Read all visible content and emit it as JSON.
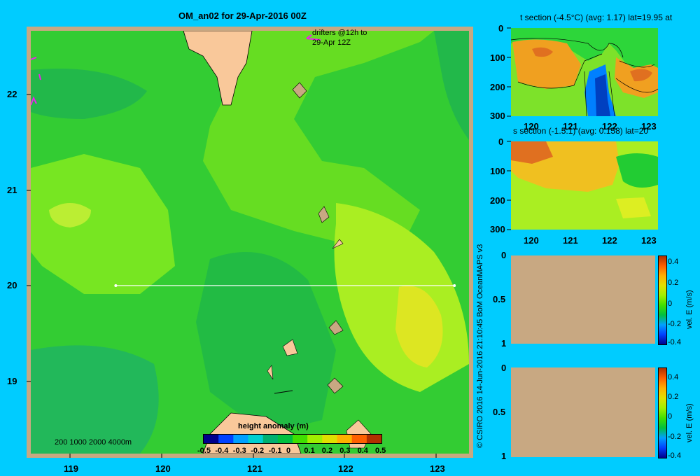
{
  "main_map": {
    "title": "OM_an02 for 29-Apr-2016 00Z",
    "drifters_label_line1": "drifters @12h to",
    "drifters_label_line2": "29-Apr 12Z",
    "xticks": [
      "119",
      "120",
      "121",
      "122",
      "123"
    ],
    "yticks": [
      "22",
      "21",
      "20",
      "19"
    ],
    "depth_legend": "200  1000  2000  4000m",
    "section_line_lat": 20,
    "section_line_lon_range": [
      119.5,
      123.2
    ],
    "colorbar": {
      "title": "height anomaly  (m)",
      "ticks": [
        "-0.5",
        "-0.4",
        "-0.3",
        "-0.2",
        "-0.1",
        "0",
        "0.1",
        "0.2",
        "0.3",
        "0.4",
        "0.5"
      ],
      "colors": [
        "#00008b",
        "#0040ff",
        "#00a0ff",
        "#00d0d0",
        "#00b070",
        "#00c040",
        "#40e000",
        "#a0f000",
        "#e0e000",
        "#ffb000",
        "#ff6000",
        "#b03000"
      ]
    }
  },
  "copyright": "© CSIRO 2016    14-Jun-2016 21:10:45 BoM OceanMAPS v3",
  "t_section": {
    "title": "t section (-4.5°C) (avg: 1.17) lat=19.95 at",
    "yticks": [
      "0",
      "100",
      "200",
      "300"
    ],
    "xticks": [
      "120",
      "121",
      "122",
      "123"
    ]
  },
  "s_section": {
    "title": "s section (-1.5:1) (avg: 0.158) lat=20",
    "yticks": [
      "0",
      "100",
      "200",
      "300"
    ],
    "xticks": [
      "120",
      "121",
      "122",
      "123"
    ]
  },
  "vel_panel_1": {
    "yticks": [
      "0",
      "0.5",
      "1"
    ],
    "colorbar_ticks": [
      "0.4",
      "0.2",
      "0",
      "-0.2",
      "-0.4"
    ],
    "colorbar_label": "vel. E (m/s)"
  },
  "vel_panel_2": {
    "yticks": [
      "0",
      "0.5",
      "1"
    ],
    "colorbar_ticks": [
      "0.4",
      "0.2",
      "0",
      "-0.2",
      "-0.4"
    ],
    "colorbar_label": "vel. E (m/s)"
  },
  "colors": {
    "background": "#00ccff",
    "land": "#f9c89a",
    "panel_fill": "#c8a882"
  },
  "chart_data": [
    {
      "type": "heatmap",
      "title": "OM_an02 for 29-Apr-2016 00Z",
      "xlabel": "",
      "ylabel": "",
      "xlim": [
        118.5,
        123.5
      ],
      "ylim": [
        18.3,
        22.7
      ],
      "colorbar_label": "height anomaly  (m)",
      "colorbar_range": [
        -0.5,
        0.5
      ]
    },
    {
      "type": "heatmap",
      "title": "t section (-4.5°C) (avg: 1.17) lat=19.95 at",
      "xlim": [
        119.5,
        123.2
      ],
      "ylim": [
        300,
        0
      ]
    },
    {
      "type": "heatmap",
      "title": "s section (-1.5:1) (avg: 0.158) lat=20",
      "xlim": [
        119.5,
        123.2
      ],
      "ylim": [
        300,
        0
      ]
    },
    {
      "type": "heatmap",
      "title": "",
      "ylim": [
        1,
        0
      ],
      "colorbar_label": "vel. E (m/s)",
      "colorbar_range": [
        -0.4,
        0.4
      ]
    },
    {
      "type": "heatmap",
      "title": "",
      "ylim": [
        1,
        0
      ],
      "colorbar_label": "vel. E (m/s)",
      "colorbar_range": [
        -0.4,
        0.4
      ]
    }
  ]
}
